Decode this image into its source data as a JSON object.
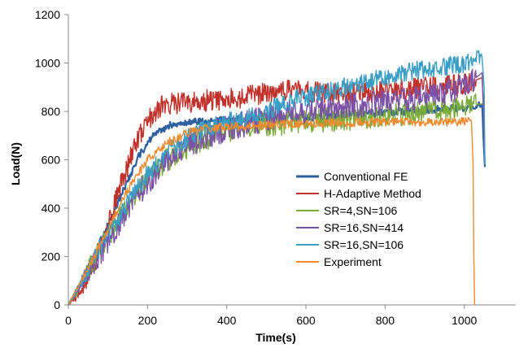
{
  "chart_data": {
    "type": "line",
    "xlabel": "Time(s)",
    "ylabel": "Load(N)",
    "xlim": [
      0,
      1130
    ],
    "ylim": [
      0,
      1200
    ],
    "xticks": [
      0,
      200,
      400,
      600,
      800,
      1000
    ],
    "yticks": [
      0,
      200,
      400,
      600,
      800,
      1000,
      1200
    ],
    "grid": false,
    "legend_position": "center-right",
    "series": [
      {
        "name": "Conventional FE",
        "color": "#2e5f9e",
        "noise": 15,
        "x": [
          0,
          30,
          60,
          100,
          140,
          180,
          220,
          260,
          300,
          350,
          400,
          450,
          500,
          550,
          600,
          650,
          700,
          750,
          800,
          850,
          900,
          950,
          1000,
          1030,
          1045,
          1048,
          1052
        ],
        "y": [
          0,
          90,
          190,
          330,
          480,
          620,
          710,
          745,
          755,
          760,
          765,
          765,
          770,
          775,
          775,
          780,
          785,
          790,
          795,
          800,
          805,
          810,
          815,
          820,
          830,
          700,
          570
        ]
      },
      {
        "name": "H-Adaptive Method",
        "color": "#c0312b",
        "noise": 45,
        "x": [
          0,
          20,
          50,
          80,
          110,
          140,
          170,
          200,
          230,
          260,
          300,
          350,
          400,
          450,
          500,
          550,
          600,
          650,
          700,
          750,
          800,
          850,
          900,
          950,
          1000,
          1030,
          1045,
          1050
        ],
        "y": [
          0,
          30,
          110,
          230,
          380,
          530,
          670,
          760,
          820,
          830,
          835,
          845,
          850,
          860,
          880,
          890,
          880,
          875,
          870,
          875,
          880,
          890,
          900,
          905,
          910,
          930,
          940,
          760
        ]
      },
      {
        "name": "SR=4,SN=106",
        "color": "#7cab3a",
        "noise": 50,
        "x": [
          0,
          30,
          70,
          120,
          160,
          200,
          250,
          300,
          350,
          400,
          450,
          500,
          550,
          600,
          650,
          700,
          750,
          800,
          850,
          900,
          950,
          1000,
          1030,
          1048,
          1052
        ],
        "y": [
          0,
          80,
          200,
          330,
          430,
          520,
          600,
          650,
          690,
          720,
          735,
          745,
          750,
          760,
          765,
          770,
          775,
          785,
          790,
          800,
          810,
          820,
          830,
          830,
          620
        ]
      },
      {
        "name": "SR=16,SN=414",
        "color": "#7b52a6",
        "noise": 55,
        "x": [
          0,
          30,
          70,
          120,
          160,
          200,
          250,
          300,
          350,
          400,
          450,
          500,
          550,
          600,
          650,
          700,
          750,
          800,
          850,
          900,
          950,
          1000,
          1030,
          1045,
          1052
        ],
        "y": [
          0,
          80,
          190,
          320,
          420,
          510,
          600,
          660,
          700,
          730,
          750,
          770,
          790,
          800,
          810,
          820,
          830,
          840,
          850,
          860,
          880,
          900,
          940,
          960,
          600
        ]
      },
      {
        "name": "SR=16,SN=106",
        "color": "#3a9ec4",
        "noise": 40,
        "x": [
          0,
          30,
          70,
          120,
          160,
          200,
          250,
          300,
          350,
          400,
          450,
          500,
          550,
          600,
          650,
          700,
          750,
          800,
          850,
          900,
          950,
          1000,
          1030,
          1045,
          1050,
          1052
        ],
        "y": [
          0,
          80,
          200,
          340,
          450,
          540,
          630,
          690,
          730,
          755,
          770,
          800,
          840,
          860,
          880,
          900,
          920,
          940,
          960,
          975,
          985,
          995,
          1010,
          1020,
          900,
          580
        ]
      },
      {
        "name": "Experiment",
        "color": "#ef8a2e",
        "noise": 18,
        "x": [
          0,
          20,
          50,
          80,
          120,
          160,
          200,
          250,
          300,
          350,
          400,
          450,
          500,
          550,
          600,
          650,
          700,
          750,
          800,
          850,
          900,
          950,
          1000,
          1018,
          1022,
          1024,
          1026
        ],
        "y": [
          0,
          60,
          150,
          250,
          380,
          500,
          600,
          670,
          710,
          730,
          735,
          740,
          745,
          748,
          750,
          752,
          754,
          755,
          756,
          757,
          757,
          757,
          757,
          757,
          600,
          200,
          0
        ]
      }
    ]
  }
}
